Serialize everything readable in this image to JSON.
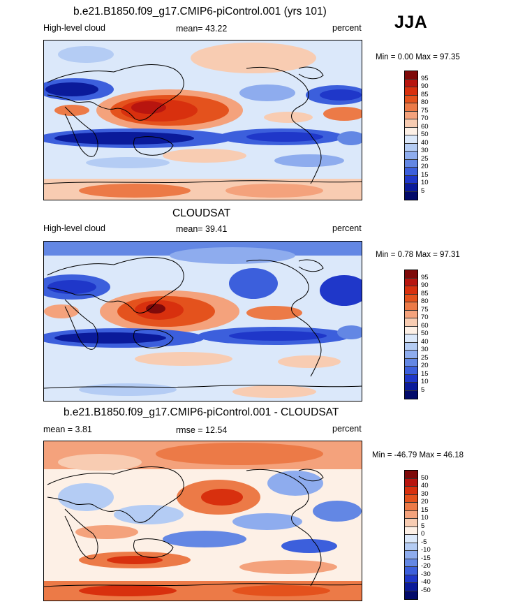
{
  "season": "JJA",
  "panels": [
    {
      "title": "b.e21.B1850.f09_g17.CMIP6-piControl.001 (yrs 101)",
      "variable": "High-level cloud",
      "stat": "mean=  43.22",
      "units": "percent",
      "minmax": "Min =   0.00 Max =  97.35",
      "colorbar": [
        "95",
        "90",
        "85",
        "80",
        "75",
        "70",
        "60",
        "50",
        "40",
        "30",
        "25",
        "20",
        "15",
        "10",
        "5"
      ],
      "palette": [
        "#7f0a0a",
        "#b8150f",
        "#d8300e",
        "#e4521d",
        "#ec7a47",
        "#f4a27c",
        "#f8ccb2",
        "#fdf0e6",
        "#dbe8fa",
        "#b4ccf4",
        "#8eacee",
        "#6387e4",
        "#3c5fdc",
        "#1f37c9",
        "#0a1a9a",
        "#020a6a"
      ]
    },
    {
      "title": "CLOUDSAT",
      "variable": "High-level cloud",
      "stat": "mean=  39.41",
      "units": "percent",
      "minmax": "Min =   0.78 Max =  97.31",
      "colorbar": [
        "95",
        "90",
        "85",
        "80",
        "75",
        "70",
        "60",
        "50",
        "40",
        "30",
        "25",
        "20",
        "15",
        "10",
        "5"
      ],
      "palette": [
        "#7f0a0a",
        "#b8150f",
        "#d8300e",
        "#e4521d",
        "#ec7a47",
        "#f4a27c",
        "#f8ccb2",
        "#fdf0e6",
        "#dbe8fa",
        "#b4ccf4",
        "#8eacee",
        "#6387e4",
        "#3c5fdc",
        "#1f37c9",
        "#0a1a9a",
        "#020a6a"
      ]
    },
    {
      "title": "b.e21.B1850.f09_g17.CMIP6-piControl.001 - CLOUDSAT",
      "variable": "mean =   3.81",
      "stat": "rmse =  12.54",
      "units": "percent",
      "minmax": "Min = -46.79 Max =  46.18",
      "colorbar": [
        "50",
        "40",
        "30",
        "20",
        "15",
        "10",
        "5",
        "0",
        "-5",
        "-10",
        "-15",
        "-20",
        "-30",
        "-40",
        "-50"
      ],
      "palette": [
        "#7f0a0a",
        "#b8150f",
        "#d8300e",
        "#e4521d",
        "#ec7a47",
        "#f4a27c",
        "#f8ccb2",
        "#fdf0e6",
        "#dbe8fa",
        "#b4ccf4",
        "#8eacee",
        "#6387e4",
        "#3c5fdc",
        "#1f37c9",
        "#0a1a9a",
        "#020a6a"
      ]
    }
  ]
}
